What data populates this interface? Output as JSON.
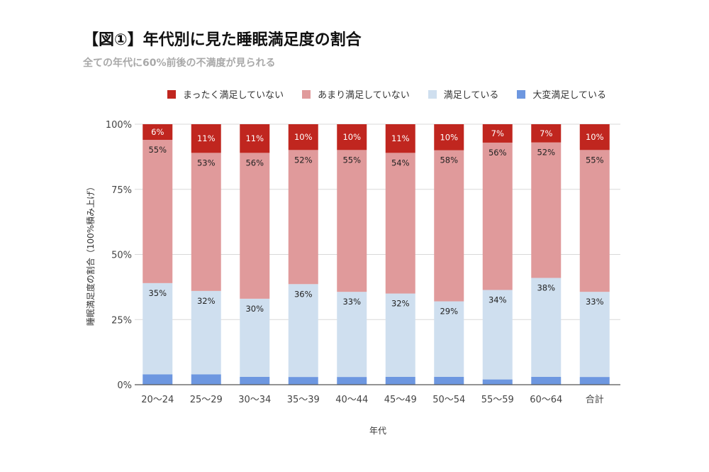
{
  "chart_data": {
    "type": "bar",
    "stacked": "100%",
    "title": "【図①】年代別に見た睡眠満足度の割合",
    "subtitle": "全ての年代に60%前後の不満度が見られる",
    "xlabel": "年代",
    "ylabel": "睡眠満足度の割合（100%積み上げ）",
    "ylim": [
      0,
      100
    ],
    "yticks": [
      "0%",
      "25%",
      "50%",
      "75%",
      "100%"
    ],
    "grid": true,
    "legend_position": "top",
    "categories": [
      "20~24",
      "25~29",
      "30~34",
      "35~39",
      "40~44",
      "45~49",
      "50~54",
      "55~59",
      "60~64",
      "合計"
    ],
    "series": [
      {
        "name": "大変満足している",
        "color": "#6d97e0",
        "label_color": "#ffffff",
        "values": [
          4,
          4,
          3,
          3,
          3,
          3,
          3,
          2,
          3,
          3
        ]
      },
      {
        "name": "満足している",
        "color": "#cfdfef",
        "label_color": "#222222",
        "values": [
          35,
          32,
          30,
          36,
          33,
          32,
          29,
          34,
          38,
          33
        ]
      },
      {
        "name": "あまり満足していない",
        "color": "#e09a9b",
        "label_color": "#222222",
        "values": [
          55,
          53,
          56,
          52,
          55,
          54,
          58,
          56,
          52,
          55
        ]
      },
      {
        "name": "まったく満足していない",
        "color": "#c0261f",
        "label_color": "#ffffff",
        "values": [
          6,
          11,
          11,
          10,
          10,
          11,
          10,
          7,
          7,
          10
        ]
      }
    ],
    "legend_order": [
      "まったく満足していない",
      "あまり満足していない",
      "満足している",
      "大変満足している"
    ]
  }
}
